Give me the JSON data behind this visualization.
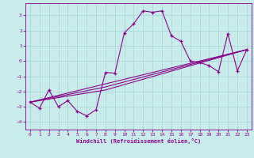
{
  "xlabel": "Windchill (Refroidissement éolien,°C)",
  "ylabel": "",
  "bg_color": "#c8ecec",
  "line_color": "#8b008b",
  "grid_color": "#a8d8d8",
  "xlim": [
    -0.5,
    23.5
  ],
  "ylim": [
    -4.5,
    3.8
  ],
  "xticks": [
    0,
    1,
    2,
    3,
    4,
    5,
    6,
    7,
    8,
    9,
    10,
    11,
    12,
    13,
    14,
    15,
    16,
    17,
    18,
    19,
    20,
    21,
    22,
    23
  ],
  "yticks": [
    -4,
    -3,
    -2,
    -1,
    0,
    1,
    2,
    3
  ],
  "series1_x": [
    0,
    1,
    2,
    3,
    4,
    5,
    6,
    7,
    8,
    9,
    10,
    11,
    12,
    13,
    14,
    15,
    16,
    17,
    18,
    19,
    20,
    21,
    22,
    23
  ],
  "series1_y": [
    -2.7,
    -3.1,
    -1.9,
    -3.0,
    -2.6,
    -3.3,
    -3.6,
    -3.2,
    -0.75,
    -0.8,
    1.85,
    2.45,
    3.3,
    3.2,
    3.3,
    1.65,
    1.3,
    0.0,
    -0.1,
    -0.3,
    -0.7,
    1.8,
    -0.65,
    0.75
  ],
  "series2_x": [
    0,
    23
  ],
  "series2_y": [
    -2.7,
    0.75
  ],
  "series3_x": [
    0,
    8,
    23
  ],
  "series3_y": [
    -2.7,
    -1.7,
    0.75
  ],
  "series4_x": [
    0,
    8,
    23
  ],
  "series4_y": [
    -2.7,
    -1.9,
    0.75
  ]
}
